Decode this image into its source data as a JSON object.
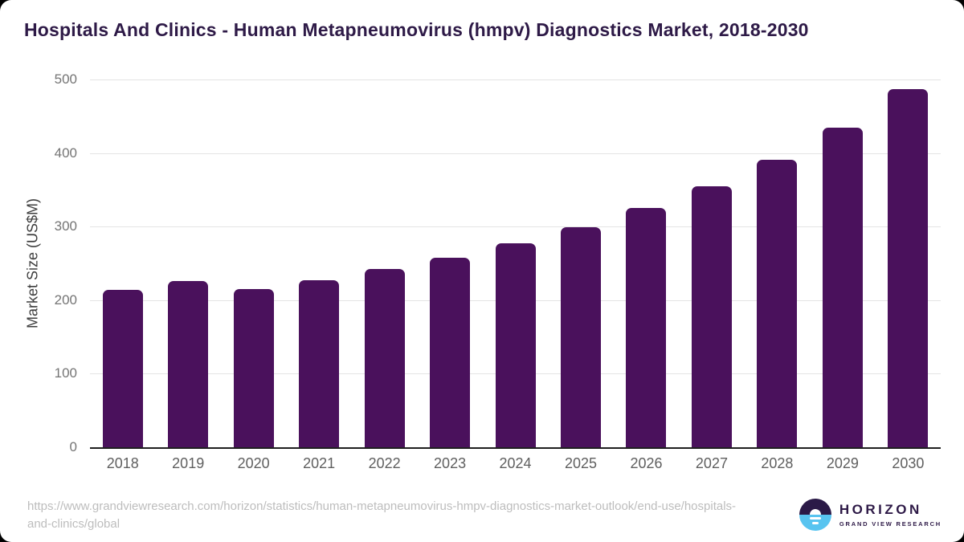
{
  "title": "Hospitals And Clinics - Human Metapneumovirus (hmpv) Diagnostics Market, 2018-2030",
  "chart_data": {
    "type": "bar",
    "categories": [
      "2018",
      "2019",
      "2020",
      "2021",
      "2022",
      "2023",
      "2024",
      "2025",
      "2026",
      "2027",
      "2028",
      "2029",
      "2030"
    ],
    "values": [
      214,
      226,
      215,
      227,
      242,
      258,
      277,
      299,
      325,
      355,
      391,
      435,
      487
    ],
    "title": "Hospitals And Clinics - Human Metapneumovirus (hmpv) Diagnostics Market, 2018-2030",
    "xlabel": "",
    "ylabel": "Market Size (US$M)",
    "ylim": [
      0,
      500
    ],
    "yticks": [
      0,
      100,
      200,
      300,
      400,
      500
    ],
    "grid": "horizontal",
    "legend": "none",
    "bar_color": "#4A115C"
  },
  "colors": {
    "title": "#2E1A47",
    "bar": "#4A115C",
    "axis_line": "#1f1f1f",
    "gridline": "#e4e4e4",
    "y_tick_text": "#757575",
    "x_tick_text": "#5f5f5f",
    "source_text": "#bdbdbd",
    "logo_navy": "#2b1a47",
    "logo_blue": "#58c4f0",
    "card_bg": "#ffffff",
    "page_bg": "#000000"
  },
  "footer": {
    "source_url_lines": [
      "https://www.grandviewresearch.com/horizon/statistics/human-metapneumovirus-hmpv-diagnostics-market-outlook/end-use/hospitals-",
      "and-clinics/global"
    ],
    "logo": {
      "brand": "HORIZON",
      "sub": "GRAND VIEW RESEARCH"
    }
  }
}
